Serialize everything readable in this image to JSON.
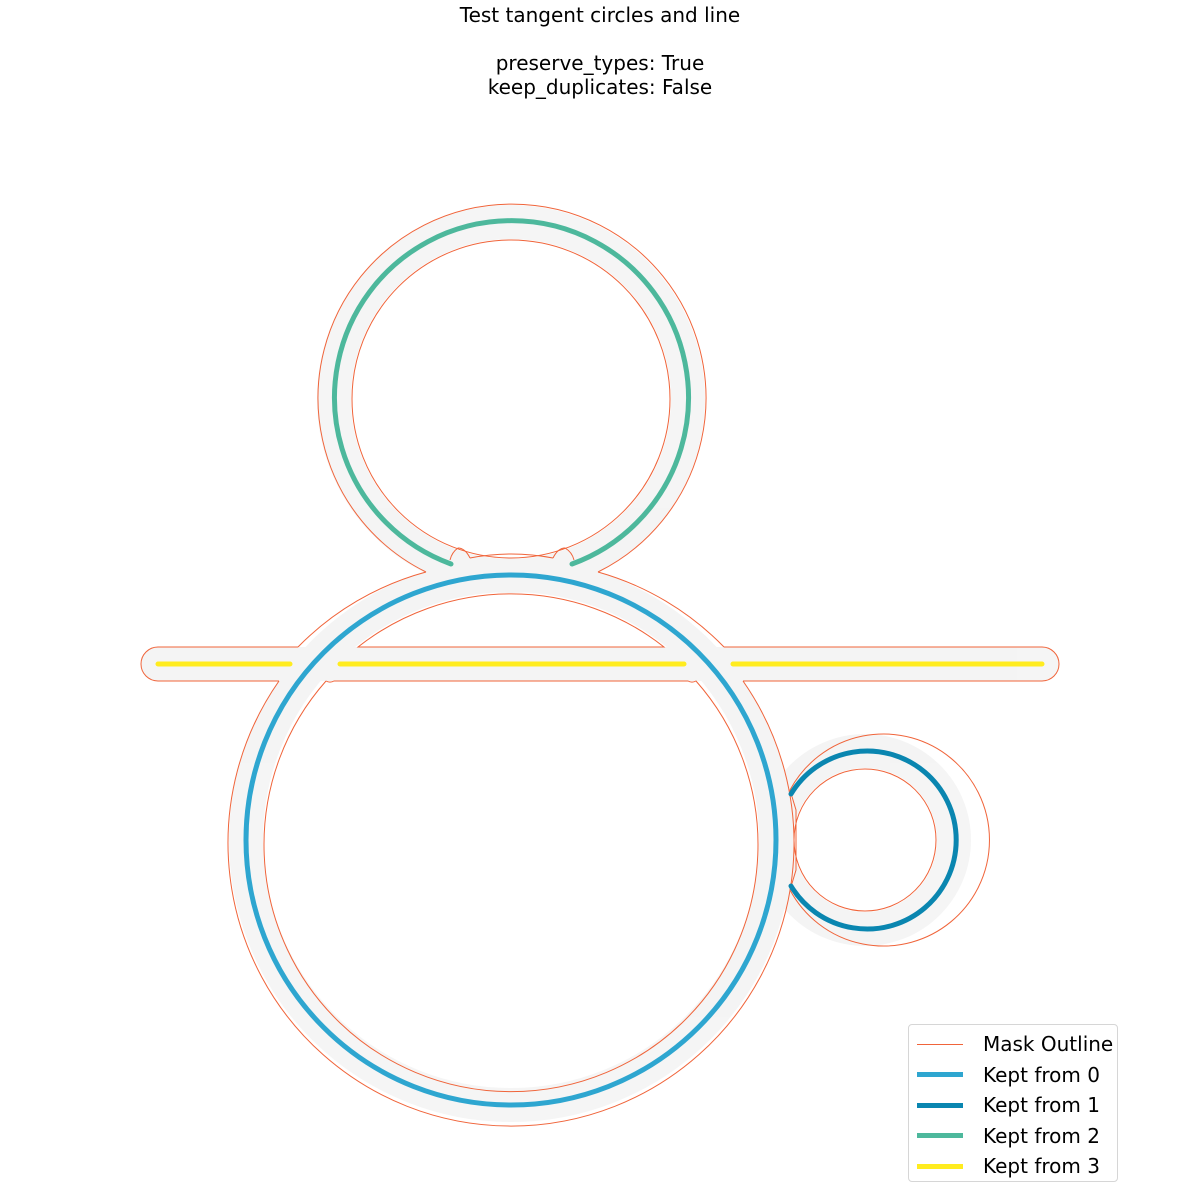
{
  "title": {
    "line1": "Test tangent circles and line",
    "line2": "preserve_types: True",
    "line3": "keep_duplicates: False"
  },
  "colors": {
    "mask": "#f0643a",
    "kept0": "#2ea6d0",
    "kept1": "#0a86b0",
    "kept2": "#4db89c",
    "kept3": "#ffec1f",
    "shadow": "#eeeeee"
  },
  "legend": [
    {
      "label": "Mask Outline",
      "color": "#f0643a",
      "width": 1
    },
    {
      "label": "Kept from 0",
      "color": "#2ea6d0",
      "width": 5
    },
    {
      "label": "Kept from 1",
      "color": "#0a86b0",
      "width": 5
    },
    {
      "label": "Kept from 2",
      "color": "#4db89c",
      "width": 5
    },
    {
      "label": "Kept from 3",
      "color": "#ffec1f",
      "width": 5
    }
  ]
}
